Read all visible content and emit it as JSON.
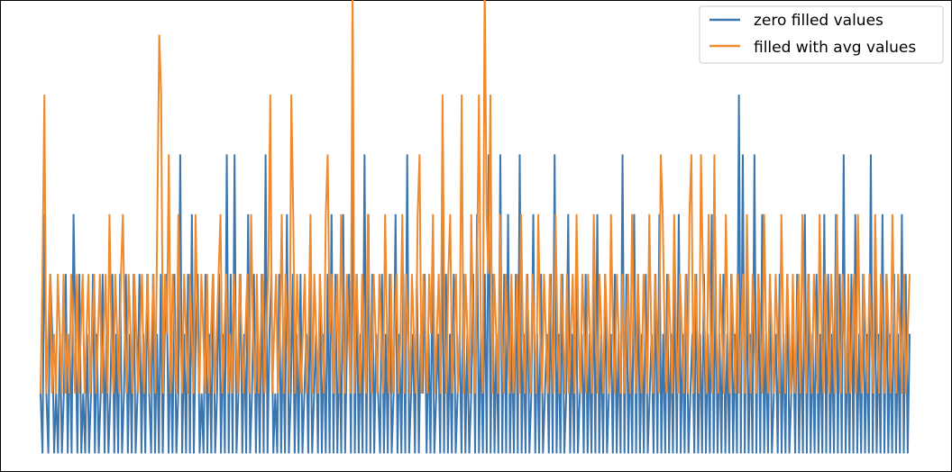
{
  "chart_data": {
    "type": "line",
    "title": "",
    "xlabel": "",
    "ylabel": "",
    "grid": false,
    "axes_tick_labels_visible": false,
    "legend": {
      "placement": "top-right"
    },
    "ylim": [
      -1.1,
      6.4
    ],
    "x_count": 480,
    "series": [
      {
        "name": "zero filled values",
        "color": "#3b76af",
        "description_values_note": "oscillates between -1 and positive levels; visible levels -1..5",
        "gaps_zero_segments_x": [
          [
            165,
            166
          ],
          [
            181,
            183
          ],
          [
            228,
            230
          ],
          [
            270,
            272
          ],
          [
            305,
            307
          ],
          [
            383,
            385
          ],
          [
            405,
            410
          ]
        ],
        "values": [
          0,
          -1,
          3,
          0,
          -1,
          2,
          1,
          -1,
          0,
          -1,
          1,
          -1,
          0,
          2,
          -1,
          1,
          -1,
          3,
          1,
          -1,
          2,
          -1,
          0,
          -1,
          1,
          -1,
          0,
          2,
          -1,
          1,
          -1,
          0,
          2,
          -1,
          1,
          -1,
          0,
          2,
          -1,
          1,
          -1,
          2,
          -1,
          0,
          2,
          -1,
          1,
          -1,
          2,
          -1,
          0,
          2,
          -1,
          1,
          -1,
          2,
          0,
          -1,
          2,
          -1,
          1,
          -1,
          2,
          -1,
          1,
          2,
          -1,
          1,
          -1,
          2,
          -1,
          0,
          4,
          -1,
          1,
          -1,
          2,
          -1,
          3,
          -1,
          1,
          2,
          -1,
          0,
          -1,
          2,
          -1,
          1,
          -1,
          2,
          -1,
          0,
          2,
          -1,
          1,
          -1,
          4,
          -1,
          2,
          -1,
          4,
          -1,
          0,
          2,
          -1,
          1,
          -1,
          3,
          -1,
          0,
          2,
          -1,
          1,
          -1,
          2,
          -1,
          4,
          -1,
          1,
          2,
          -1,
          0,
          -1,
          2,
          -1,
          1,
          -1,
          3,
          -1,
          0,
          2,
          -1,
          1,
          -1,
          2,
          -1,
          0,
          1,
          -1,
          2,
          -1,
          0,
          1,
          -1,
          2,
          -1,
          1,
          -1,
          2,
          -1,
          3,
          -1,
          2,
          -1,
          1,
          -1,
          3,
          -1,
          1,
          2,
          -1,
          4,
          -1,
          2,
          -1,
          1,
          -1,
          4,
          -1,
          3,
          -1,
          2,
          -1,
          1,
          0,
          -1,
          2,
          -1,
          1,
          -1,
          2,
          -1,
          0,
          3,
          -1,
          1,
          -1,
          2,
          -1,
          4,
          -1,
          0,
          1,
          -1,
          2,
          -1,
          1,
          0,
          2,
          -1,
          1,
          -1,
          2,
          -1,
          0,
          1,
          -1,
          3,
          -1,
          2,
          -1,
          1,
          -1,
          2,
          -1,
          0,
          1,
          -1,
          2,
          -1,
          1,
          -1,
          0,
          2,
          -1,
          3,
          -1,
          1,
          -1,
          2,
          -1,
          4,
          -1,
          2,
          -1,
          1,
          -1,
          4,
          -1,
          2,
          -1,
          3,
          -1,
          1,
          -1,
          2,
          -1,
          4,
          -1,
          1,
          -1,
          2,
          -1,
          0,
          3,
          -1,
          1,
          -1,
          2,
          -1,
          0,
          1,
          -1,
          2,
          -1,
          4,
          -1,
          1,
          -1,
          2,
          -1,
          0,
          3,
          -1,
          1,
          -1,
          2,
          -1,
          0,
          1,
          -1,
          2,
          -1,
          1,
          -1,
          2,
          -1,
          3,
          -1,
          1,
          -1,
          2,
          -1,
          0,
          1,
          -1,
          2,
          -1,
          1,
          -1,
          4,
          -1,
          2,
          -1,
          1,
          -1,
          3,
          -1,
          2,
          -1,
          1,
          -1,
          2,
          -1,
          0,
          1,
          -1,
          2,
          -1,
          3,
          -1,
          1,
          -1,
          2,
          -1,
          1,
          -1,
          2,
          -1,
          3,
          -1,
          1,
          -1,
          2,
          -1,
          0,
          1,
          -1,
          2,
          -1,
          1,
          -1,
          2,
          -1,
          1,
          -1,
          3,
          -1,
          2,
          -1,
          1,
          -1,
          2,
          -1,
          1,
          -1,
          2,
          -1,
          1,
          -1,
          5,
          -1,
          4,
          -1,
          2,
          -1,
          1,
          -1,
          4,
          -1,
          2,
          -1,
          3,
          -1,
          1,
          -1,
          2,
          -1,
          0,
          1,
          -1,
          2,
          -1,
          1,
          -1,
          2,
          -1,
          0,
          1,
          -1,
          2,
          -1,
          1,
          -1,
          3,
          -1,
          2,
          -1,
          1,
          -1,
          2,
          -1,
          1,
          -1,
          3,
          -1,
          2,
          -1,
          1,
          -1,
          3,
          -1,
          2,
          -1,
          4,
          -1,
          1,
          -1,
          2,
          -1,
          3,
          -1,
          1,
          -1,
          2,
          -1,
          1,
          -1,
          4,
          -1,
          2,
          -1,
          1,
          -1,
          3,
          -1,
          2,
          -1,
          1,
          -1,
          2,
          -1,
          1,
          -1,
          3,
          -1,
          2,
          -1,
          1
        ]
      },
      {
        "name": "filled with avg values",
        "color": "#ef8a2e",
        "values": [
          0,
          2,
          5,
          0,
          1,
          2,
          0,
          1,
          0,
          2,
          1,
          0,
          2,
          0,
          1,
          0,
          2,
          1,
          0,
          2,
          0,
          1,
          2,
          0,
          1,
          2,
          0,
          1,
          2,
          0,
          1,
          2,
          0,
          1,
          2,
          0,
          3,
          1,
          0,
          2,
          1,
          0,
          2,
          3,
          1,
          0,
          2,
          1,
          0,
          2,
          1,
          0,
          1,
          2,
          0,
          1,
          2,
          0,
          1,
          2,
          0,
          3,
          6,
          5,
          0,
          2,
          1,
          4,
          0,
          2,
          1,
          0,
          3,
          1,
          0,
          2,
          1,
          0,
          2,
          1,
          0,
          3,
          1,
          0,
          2,
          1,
          0,
          2,
          0,
          1,
          2,
          0,
          1,
          2,
          3,
          0,
          1,
          2,
          0,
          1,
          0,
          2,
          1,
          0,
          2,
          1,
          0,
          1,
          2,
          0,
          3,
          1,
          0,
          2,
          0,
          1,
          2,
          0,
          1,
          2,
          5,
          0,
          1,
          2,
          0,
          1,
          3,
          0,
          2,
          1,
          0,
          5,
          3,
          0,
          2,
          1,
          0,
          1,
          2,
          0,
          1,
          3,
          0,
          2,
          1,
          0,
          2,
          1,
          0,
          3,
          4,
          1,
          2,
          0,
          1,
          2,
          0,
          3,
          1,
          0,
          2,
          1,
          0,
          7,
          0,
          2,
          1,
          0,
          2,
          1,
          0,
          3,
          1,
          0,
          2,
          1,
          0,
          2,
          1,
          0,
          3,
          1,
          0,
          2,
          0,
          1,
          2,
          0,
          1,
          3,
          0,
          2,
          1,
          0,
          2,
          1,
          0,
          3,
          4,
          0,
          2,
          1,
          0,
          2,
          1,
          3,
          0,
          1,
          2,
          0,
          5,
          1,
          0,
          2,
          3,
          0,
          1,
          2,
          0,
          1,
          5,
          0,
          2,
          1,
          0,
          3,
          1,
          0,
          2,
          5,
          1,
          0,
          7,
          3,
          2,
          5,
          0,
          2,
          1,
          0,
          3,
          1,
          0,
          2,
          1,
          0,
          2,
          0,
          1,
          2,
          0,
          3,
          1,
          0,
          2,
          1,
          0,
          2,
          1,
          0,
          3,
          1,
          0,
          2,
          1,
          0,
          2,
          1,
          0,
          3,
          1,
          0,
          2,
          1,
          0,
          2,
          0,
          1,
          2,
          0,
          3,
          1,
          0,
          2,
          1,
          0,
          2,
          1,
          0,
          3,
          1,
          0,
          2,
          1,
          0,
          2,
          1,
          0,
          3,
          1,
          0,
          2,
          1,
          0,
          2,
          0,
          1,
          2,
          0,
          3,
          1,
          0,
          2,
          1,
          0,
          2,
          1,
          0,
          3,
          1,
          0,
          2,
          1,
          0,
          4,
          3,
          1,
          0,
          2,
          1,
          0,
          3,
          1,
          0,
          2,
          1,
          0,
          2,
          0,
          3,
          4,
          0,
          2,
          1,
          0,
          4,
          2,
          1,
          0,
          3,
          1,
          0,
          4,
          1,
          0,
          2,
          1,
          0,
          3,
          1,
          0,
          2,
          1,
          0,
          2,
          0,
          1,
          2,
          0,
          3,
          1,
          0,
          2,
          1,
          0,
          2,
          1,
          0,
          3,
          1,
          0,
          2,
          1,
          0,
          2,
          1,
          0,
          3,
          1,
          0,
          2,
          1,
          0,
          2,
          0,
          1,
          2,
          0,
          3,
          1,
          0,
          2,
          1,
          0,
          2,
          1,
          0,
          3,
          1,
          0,
          2,
          1,
          0,
          2,
          1,
          0,
          3,
          1,
          0,
          2,
          1,
          0,
          2,
          0,
          1,
          2,
          0,
          3,
          1,
          0,
          2,
          1,
          0,
          2,
          1,
          0,
          3,
          1,
          0,
          2,
          1,
          0,
          2,
          1,
          0,
          3,
          1,
          0,
          2,
          1,
          0,
          2,
          0,
          1,
          2
        ]
      }
    ]
  }
}
